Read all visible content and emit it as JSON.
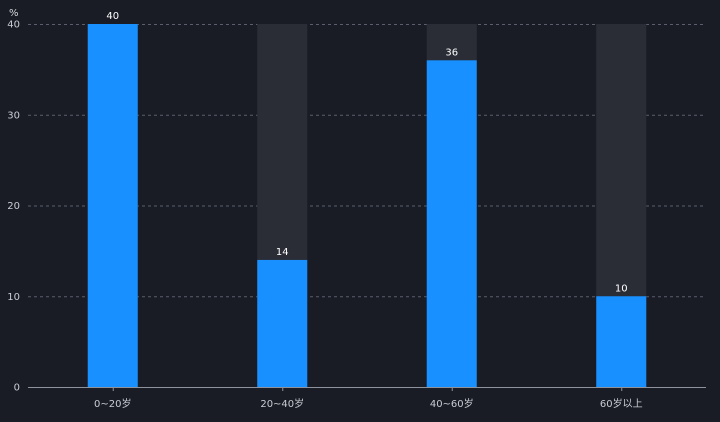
{
  "chart_data": {
    "type": "bar",
    "categories": [
      "0~20岁",
      "20~40岁",
      "40~60岁",
      "60岁以上"
    ],
    "values": [
      40,
      14,
      36,
      10
    ],
    "background_max": 40,
    "ylabel": "%",
    "ylim": [
      0,
      40
    ],
    "yticks": [
      0,
      10,
      20,
      30,
      40
    ],
    "grid": true,
    "colors": {
      "bar": "#1890ff",
      "bar_background": "#2a2d36",
      "page_background": "#191c24"
    }
  }
}
